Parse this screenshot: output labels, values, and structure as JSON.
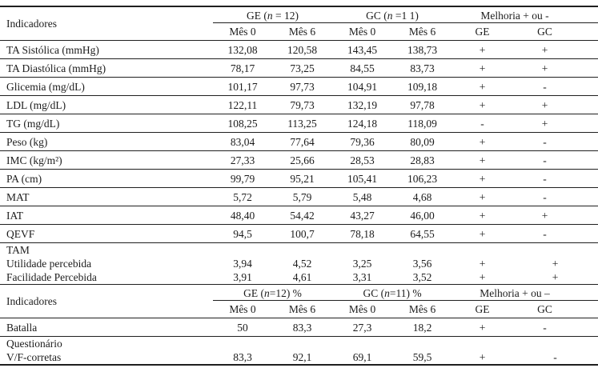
{
  "colors": {
    "background": "#ffffff",
    "text": "#1c1c1c",
    "line": "#1f1f1f"
  },
  "table_top": {
    "indicator_header": "Indicadores",
    "groups": [
      {
        "prefix": "GE (",
        "n": "n",
        "suffix": " = 12)"
      },
      {
        "prefix": "GC (",
        "n": "n",
        "suffix": " =1 1)"
      },
      {
        "prefix": "Melhoria + ou -",
        "n": "",
        "suffix": ""
      }
    ],
    "subheaders": [
      "Mês 0",
      "Mês 6",
      "Mês 0",
      "Mês 6",
      "GE",
      "GC"
    ],
    "rows": [
      {
        "label": "TA Sistólica (mmHg)",
        "values": [
          "132,08",
          "120,58",
          "143,45",
          "138,73",
          "+",
          "+"
        ],
        "border": true
      },
      {
        "label": "TA Diastólica (mmHg)",
        "values": [
          "78,17",
          "73,25",
          "84,55",
          "83,73",
          "+",
          "+"
        ],
        "border": true
      },
      {
        "label": "Glicemia (mg/dL)",
        "values": [
          "101,17",
          "97,73",
          "104,91",
          "109,18",
          "+",
          "-"
        ],
        "border": true
      },
      {
        "label": "LDL (mg/dL)",
        "values": [
          "122,11",
          "79,73",
          "132,19",
          "97,78",
          "+",
          "+"
        ],
        "border": true
      },
      {
        "label": "TG (mg/dL)",
        "values": [
          "108,25",
          "113,25",
          "124,18",
          "118,09",
          "-",
          "+"
        ],
        "border": true
      },
      {
        "label": "Peso (kg)",
        "values": [
          "83,04",
          "77,64",
          "79,36",
          "80,09",
          "+",
          "-"
        ],
        "border": true
      },
      {
        "label": "IMC (kg/m²)",
        "values": [
          "27,33",
          "25,66",
          "28,53",
          "28,83",
          "+",
          "-"
        ],
        "border": true
      },
      {
        "label": "PA (cm)",
        "values": [
          "99,79",
          "95,21",
          "105,41",
          "106,23",
          "+",
          "-"
        ],
        "border": true
      },
      {
        "label": "MAT",
        "values": [
          "5,72",
          "5,79",
          "5,48",
          "4,68",
          "+",
          "-"
        ],
        "border": true
      },
      {
        "label": "IAT",
        "values": [
          "48,40",
          "54,42",
          "43,27",
          "46,00",
          "+",
          "+"
        ],
        "border": true
      },
      {
        "label": "QEVF",
        "values": [
          "94,5",
          "100,7",
          "78,18",
          "64,55",
          "+",
          "-"
        ],
        "border": true
      },
      {
        "label": "TAM",
        "values": [
          "",
          "",
          "",
          "",
          "",
          ""
        ],
        "border": false,
        "compact": true
      },
      {
        "label": "Utilidade percebida",
        "values": [
          "3,94",
          "4,52",
          "3,25",
          "3,56",
          "+",
          "+"
        ],
        "border": false,
        "compact": true
      },
      {
        "label": "Facilidade Percebida",
        "values": [
          "3,91",
          "4,61",
          "3,31",
          "3,52",
          "+",
          "+"
        ],
        "border": true,
        "compact": true
      }
    ]
  },
  "table_bottom": {
    "indicator_header": "Indicadores",
    "groups": [
      {
        "prefix": "GE (",
        "n": "n",
        "suffix": "=12) %"
      },
      {
        "prefix": "GC (",
        "n": "n",
        "suffix": "=11) %"
      },
      {
        "prefix": "Melhoria + ou –",
        "n": "",
        "suffix": ""
      }
    ],
    "subheaders": [
      "Mês 0",
      "Mês 6",
      "Mês 0",
      "Mês 6",
      "GE",
      "GC"
    ],
    "rows": [
      {
        "label": "Batalla",
        "values": [
          "50",
          "83,3",
          "27,3",
          "18,2",
          "+",
          "-"
        ],
        "border": true
      },
      {
        "label": "Questionário",
        "values": [
          "",
          "",
          "",
          "",
          "",
          ""
        ],
        "border": false,
        "compact": true
      },
      {
        "label": "V/F-corretas",
        "values": [
          "83,3",
          "92,1",
          "69,1",
          "59,5",
          "+",
          "-"
        ],
        "border": true,
        "compact": true,
        "last": true
      }
    ]
  }
}
